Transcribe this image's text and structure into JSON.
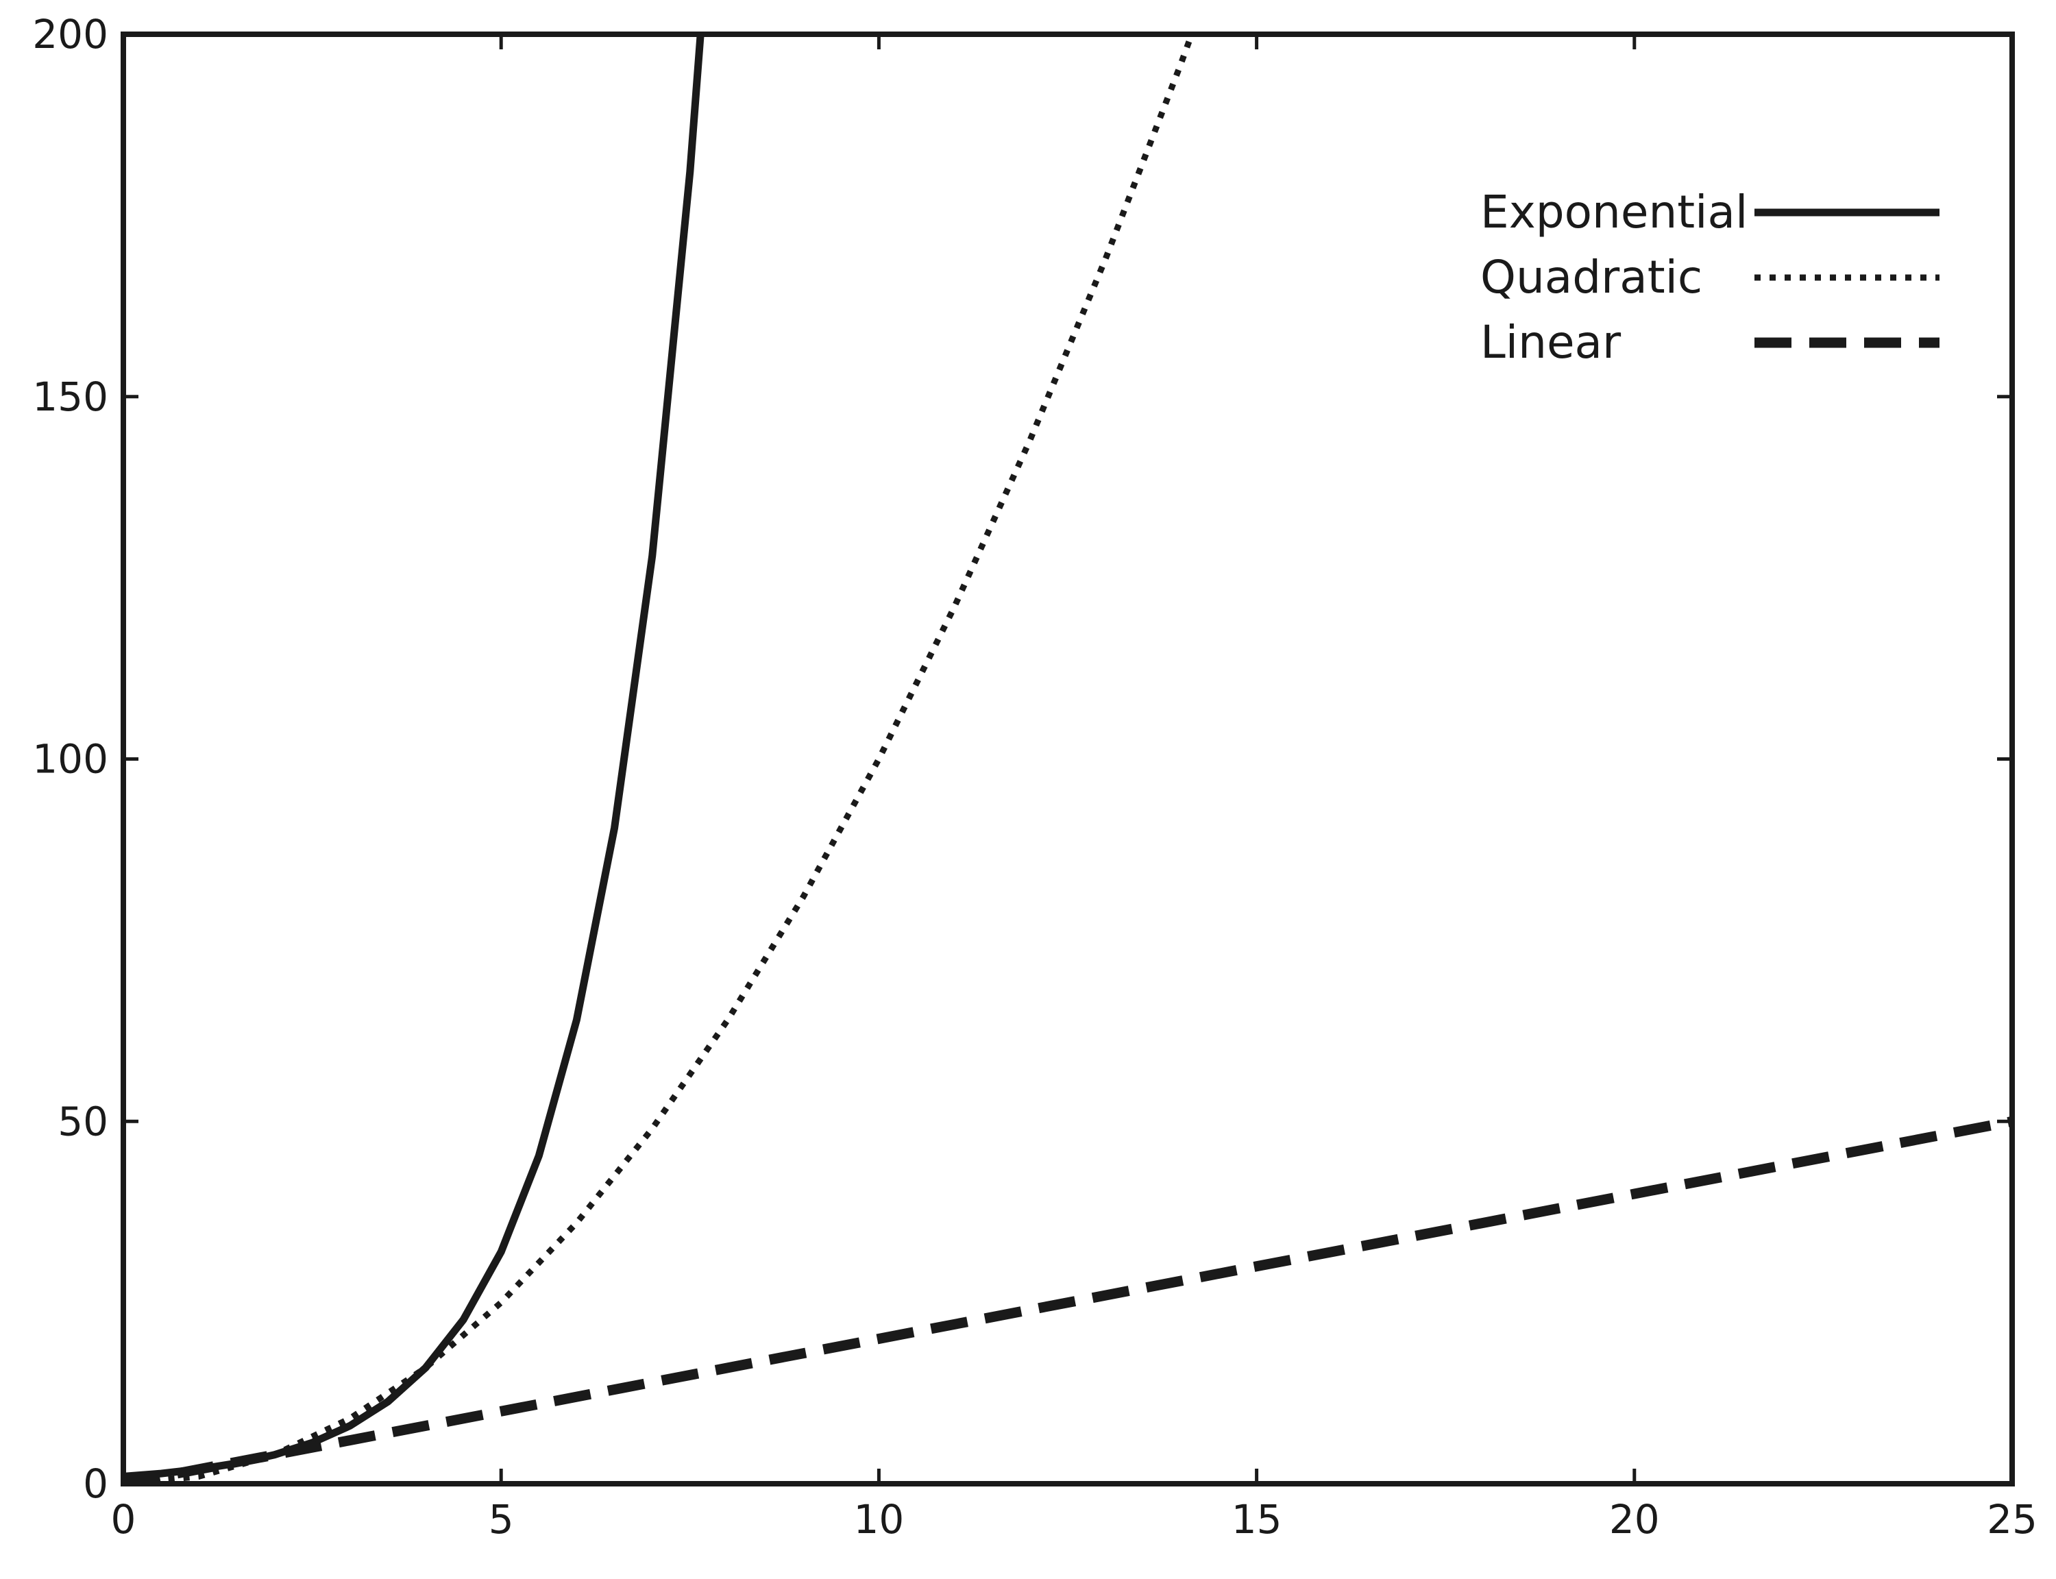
{
  "chart_data": {
    "type": "line",
    "title": "",
    "xlabel": "",
    "ylabel": "",
    "xlim": [
      0,
      25
    ],
    "ylim": [
      0,
      200
    ],
    "xticks": [
      0,
      5,
      10,
      15,
      20,
      25
    ],
    "yticks": [
      0,
      50,
      100,
      150,
      200
    ],
    "xtick_labels": [
      "0",
      "5",
      "10",
      "15",
      "20",
      "25"
    ],
    "ytick_labels": [
      "0",
      "50",
      "100",
      "150",
      "200"
    ],
    "grid": false,
    "legend": {
      "position": "top-right"
    },
    "colors": {
      "line": "#1a1a1a",
      "axis": "#1a1a1a",
      "background": "#ffffff"
    },
    "series": [
      {
        "name": "Exponential",
        "style": "solid",
        "x": [
          0,
          0.5,
          1,
          1.5,
          2,
          2.5,
          3,
          3.5,
          4,
          4.5,
          5,
          5.5,
          6,
          6.5,
          7,
          7.5,
          7.64
        ],
        "y": [
          1.0,
          1.41,
          2.0,
          2.83,
          4.0,
          5.66,
          8.0,
          11.31,
          16.0,
          22.63,
          32.0,
          45.25,
          64.0,
          90.51,
          128.0,
          181.02,
          200.0
        ]
      },
      {
        "name": "Quadratic",
        "style": "dotted",
        "x": [
          0,
          1,
          2,
          3,
          4,
          5,
          6,
          7,
          8,
          9,
          10,
          11,
          12,
          13,
          14,
          14.14
        ],
        "y": [
          0,
          1,
          4,
          9,
          16,
          25,
          36,
          49,
          64,
          81,
          100,
          121,
          144,
          169,
          196,
          200
        ]
      },
      {
        "name": "Linear",
        "style": "dashed",
        "x": [
          0,
          5,
          10,
          15,
          20,
          25
        ],
        "y": [
          0,
          10,
          20,
          30,
          40,
          50
        ]
      }
    ]
  }
}
